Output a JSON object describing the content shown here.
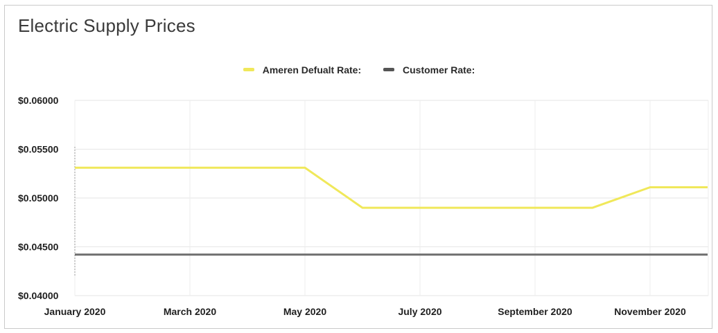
{
  "page": {
    "title": "Electric Supply Prices"
  },
  "legend": {
    "items": [
      {
        "label": "Ameren Defualt Rate:",
        "color": "#f0e85a"
      },
      {
        "label": "Customer Rate:",
        "color": "#555555"
      }
    ]
  },
  "chart_data": {
    "type": "line",
    "title": "Electric Supply Prices",
    "x": [
      "2020-01",
      "2020-02",
      "2020-03",
      "2020-04",
      "2020-05",
      "2020-06",
      "2020-07",
      "2020-08",
      "2020-09",
      "2020-10",
      "2020-11",
      "2020-12"
    ],
    "x_tick_labels": [
      "January 2020",
      "March 2020",
      "May 2020",
      "July 2020",
      "September 2020",
      "November 2020"
    ],
    "y_tick_labels": [
      "$0.06000",
      "$0.05500",
      "$0.05000",
      "$0.04500",
      "$0.04000"
    ],
    "ylim": [
      0.04,
      0.06
    ],
    "grid": true,
    "legend_position": "top-center",
    "series": [
      {
        "name": "Ameren Defualt Rate:",
        "color": "#f0e85a",
        "values": [
          0.0531,
          0.0531,
          0.0531,
          0.0531,
          0.0531,
          0.049,
          0.049,
          0.049,
          0.049,
          0.049,
          0.0511,
          0.0511
        ]
      },
      {
        "name": "Customer Rate:",
        "color": "#6e6e6e",
        "values": [
          0.0442,
          0.0442,
          0.0442,
          0.0442,
          0.0442,
          0.0442,
          0.0442,
          0.0442,
          0.0442,
          0.0442,
          0.0442,
          0.0442
        ]
      }
    ]
  }
}
